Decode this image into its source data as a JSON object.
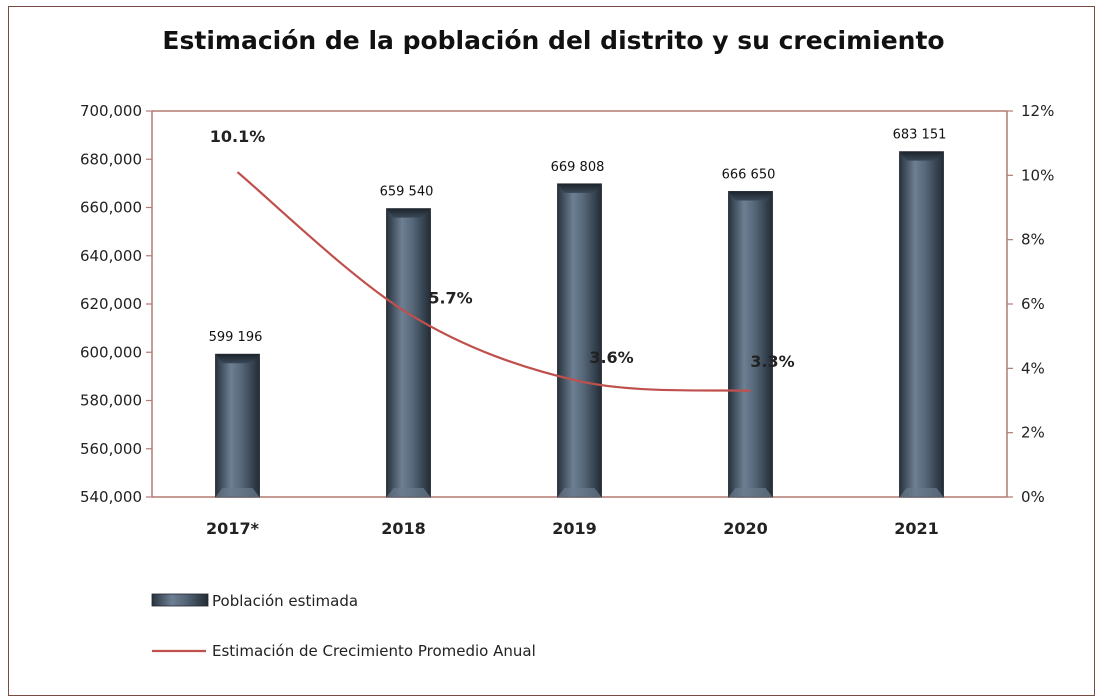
{
  "chart_data": {
    "type": "bar",
    "title": "Estimación de la población del distrito y su crecimiento",
    "categories": [
      "2017*",
      "2018",
      "2019",
      "2020",
      "2021"
    ],
    "series": [
      {
        "name": "Población estimada",
        "type": "bar",
        "axis": "left",
        "values": [
          599196,
          659540,
          669808,
          666650,
          683151
        ],
        "labels": [
          "599 196",
          "659 540",
          "669 808",
          "666 650",
          "683 151"
        ],
        "color": "#3f4f60"
      },
      {
        "name": "Estimación de Crecimiento Promedio Anual",
        "type": "line",
        "axis": "right",
        "values": [
          10.1,
          5.7,
          3.6,
          3.3,
          null
        ],
        "labels": [
          "10.1%",
          "5.7%",
          "3.6%",
          "3.3%",
          null
        ],
        "color": "#c0504d"
      }
    ],
    "y_left": {
      "min": 540000,
      "max": 700000,
      "step": 20000,
      "ticks": [
        "540,000",
        "560,000",
        "580,000",
        "600,000",
        "620,000",
        "640,000",
        "660,000",
        "680,000",
        "700,000"
      ]
    },
    "y_right": {
      "min": 0,
      "max": 12,
      "step": 2,
      "ticks": [
        "0%",
        "2%",
        "4%",
        "6%",
        "8%",
        "10%",
        "12%"
      ]
    },
    "grid": false,
    "legend_position": "bottom-left"
  }
}
